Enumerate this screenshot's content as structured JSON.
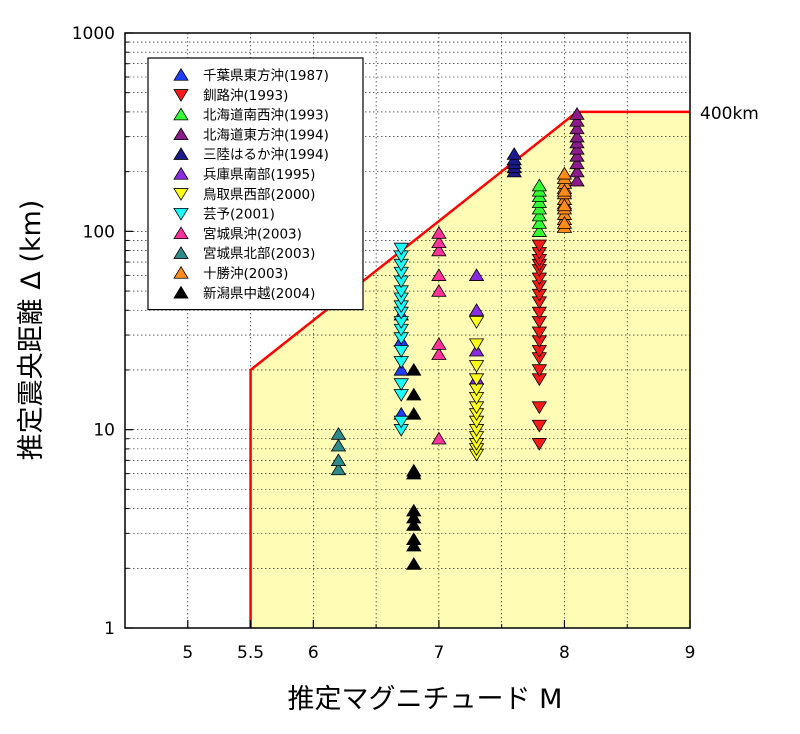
{
  "chart_data": {
    "type": "scatter",
    "title": "",
    "xlabel": "推定マグニチュード M",
    "ylabel": "推定震央距離 Δ (km)",
    "xlim": [
      4.5,
      9
    ],
    "ylim": [
      1,
      1000
    ],
    "yscale": "log",
    "x_tick_labels": [
      "5",
      "5.5",
      "6",
      "7",
      "8",
      "9"
    ],
    "x_ticks": [
      5,
      5.5,
      6,
      7,
      8,
      9
    ],
    "y_tick_labels": [
      "1",
      "10",
      "100",
      "1000"
    ],
    "y_ticks": [
      1,
      10,
      100,
      1000
    ],
    "grid": true,
    "legend_position": "top-left",
    "region": {
      "fill": "#fffdb5",
      "line_color": "#ff0000",
      "boundary": [
        [
          5.5,
          1
        ],
        [
          5.5,
          20
        ],
        [
          8.1,
          400
        ],
        [
          9,
          400
        ]
      ],
      "annotation": "400km"
    },
    "series": [
      {
        "name": "千葉県東方沖(1987)",
        "marker": "up",
        "color": "#1f3fff",
        "x": [
          6.7,
          6.7,
          6.7,
          6.7
        ],
        "y": [
          12,
          20,
          28,
          38
        ]
      },
      {
        "name": "釧路沖(1993)",
        "marker": "down",
        "color": "#ff1a1a",
        "x": [
          7.8,
          7.8,
          7.8,
          7.8,
          7.8,
          7.8,
          7.8,
          7.8,
          7.8,
          7.8,
          7.8,
          7.8,
          7.8,
          7.8,
          7.8,
          7.8,
          7.8,
          7.8,
          7.8,
          7.8
        ],
        "y": [
          8.5,
          10.5,
          13,
          18,
          20,
          23,
          25,
          28,
          31,
          35,
          39,
          44,
          48,
          53,
          58,
          64,
          68,
          72,
          78,
          85
        ]
      },
      {
        "name": "北海道南西沖(1993)",
        "marker": "up",
        "color": "#33ff33",
        "x": [
          7.8,
          7.8,
          7.8,
          7.8,
          7.8,
          7.8,
          7.8,
          7.8
        ],
        "y": [
          100,
          110,
          120,
          130,
          140,
          150,
          160,
          170
        ]
      },
      {
        "name": "北海道東方沖(1994)",
        "marker": "up",
        "color": "#8b1a8b",
        "x": [
          8.1,
          8.1,
          8.1,
          8.1,
          8.1,
          8.1,
          8.1,
          8.1,
          8.1,
          8.1
        ],
        "y": [
          180,
          200,
          220,
          240,
          260,
          280,
          300,
          330,
          360,
          390
        ]
      },
      {
        "name": "三陸はるか沖(1994)",
        "marker": "up",
        "color": "#1a1a8b",
        "x": [
          7.6,
          7.6,
          7.6,
          7.6,
          7.6
        ],
        "y": [
          200,
          210,
          220,
          230,
          245
        ]
      },
      {
        "name": "兵庫県南部(1995)",
        "marker": "up",
        "color": "#8a2be2",
        "x": [
          7.3,
          7.3,
          7.3,
          7.3
        ],
        "y": [
          18,
          25,
          40,
          60
        ]
      },
      {
        "name": "鳥取県西部(2000)",
        "marker": "down",
        "color": "#ffff1a",
        "x": [
          7.3,
          7.3,
          7.3,
          7.3,
          7.3,
          7.3,
          7.3,
          7.3,
          7.3,
          7.3,
          7.3,
          7.3,
          7.3,
          7.3
        ],
        "y": [
          7.5,
          8,
          8.5,
          9.2,
          10,
          11,
          12,
          13,
          14.5,
          16,
          18,
          21,
          27,
          35
        ]
      },
      {
        "name": "芸予(2001)",
        "marker": "down",
        "color": "#1affff",
        "x": [
          6.7,
          6.7,
          6.7,
          6.7,
          6.7,
          6.7,
          6.7,
          6.7,
          6.7,
          6.7,
          6.7,
          6.7,
          6.7,
          6.7,
          6.7,
          6.7,
          6.7,
          6.7
        ],
        "y": [
          10,
          11,
          15,
          17,
          22,
          25,
          29,
          32,
          35,
          39,
          42,
          46,
          50,
          56,
          62,
          68,
          75,
          82
        ]
      },
      {
        "name": "宮城県沖(2003)",
        "marker": "up",
        "color": "#ff3399",
        "x": [
          7.0,
          7.0,
          7.0,
          7.0,
          7.0,
          7.0,
          7.0,
          7.0
        ],
        "y": [
          9,
          24,
          27,
          50,
          60,
          80,
          88,
          98
        ]
      },
      {
        "name": "宮城県北部(2003)",
        "marker": "up",
        "color": "#2e8b8b",
        "x": [
          6.2,
          6.2,
          6.2,
          6.2
        ],
        "y": [
          6.3,
          7,
          8.3,
          9.5
        ]
      },
      {
        "name": "十勝沖(2003)",
        "marker": "up",
        "color": "#ff8c1a",
        "x": [
          8.0,
          8.0,
          8.0,
          8.0,
          8.0,
          8.0,
          8.0,
          8.0,
          8.0,
          8.0,
          8.0,
          8.0,
          8.0,
          8.0
        ],
        "y": [
          105,
          115,
          122,
          130,
          138,
          145,
          155,
          165,
          175,
          185,
          195,
          110,
          135,
          160
        ]
      },
      {
        "name": "新潟県中越(2004)",
        "marker": "up",
        "color": "#000000",
        "x": [
          6.8,
          6.8,
          6.8,
          6.8,
          6.8,
          6.8,
          6.8,
          6.8,
          6.8,
          6.8,
          6.8
        ],
        "y": [
          2.1,
          2.6,
          2.8,
          3.3,
          3.6,
          6.2,
          12,
          15,
          20,
          6.0,
          3.9
        ]
      }
    ]
  }
}
